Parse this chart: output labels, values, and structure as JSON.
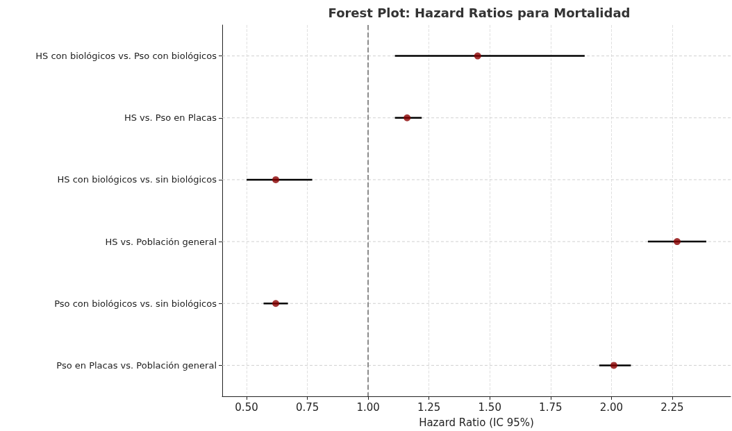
{
  "chart_data": {
    "type": "scatter",
    "orientation": "horizontal",
    "title": "Forest Plot: Hazard Ratios para Mortalidad",
    "xlabel": "Hazard Ratio (IC 95%)",
    "categories": [
      "HS con biológicos vs. Pso con biológicos",
      "HS vs. Pso en Placas",
      "HS con biológicos vs. sin biológicos",
      "HS vs. Población general",
      "Pso con biológicos vs. sin biológicos",
      "Pso en Placas vs. Población general"
    ],
    "color": "#8b0000",
    "values": [
      1.45,
      1.16,
      0.62,
      2.27,
      0.62,
      2.01
    ],
    "errors": [
      [
        1.11,
        1.89
      ],
      [
        1.11,
        1.22
      ],
      [
        0.5,
        0.77
      ],
      [
        2.15,
        2.39
      ],
      [
        0.57,
        0.67
      ],
      [
        1.95,
        2.08
      ]
    ],
    "xlim": [
      0.4,
      2.49
    ],
    "xticks": [
      {
        "value": 0.5,
        "label": "0.50"
      },
      0.75,
      {
        "value": 1.0,
        "label": "1.00"
      },
      1.25,
      {
        "value": 1.5,
        "label": "1.50"
      },
      1.75,
      {
        "value": 2.0,
        "label": "2.00"
      },
      2.25
    ],
    "ref_lines": [
      {
        "axis": "x",
        "value": 1.0,
        "color": "#808080",
        "line_style": "dashed"
      }
    ],
    "grid": true,
    "marker": "circle"
  }
}
